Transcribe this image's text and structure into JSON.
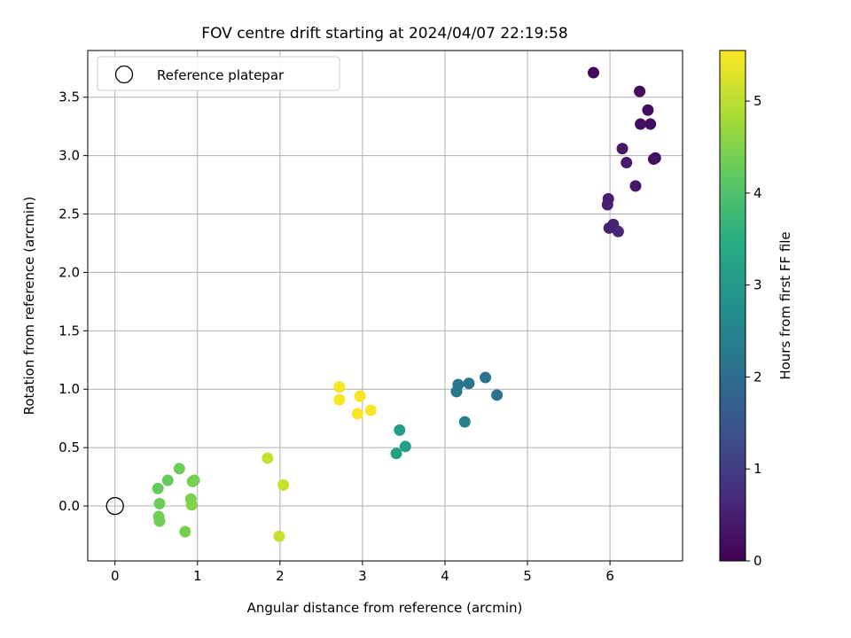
{
  "chart_data": {
    "type": "scatter",
    "title": "FOV centre drift starting at 2024/04/07 22:19:58",
    "xlabel": "Angular distance from reference (arcmin)",
    "ylabel": "Rotation from reference (arcmin)",
    "xlim": [
      -0.33,
      6.88
    ],
    "ylim": [
      -0.47,
      3.9
    ],
    "xticks": [
      "0",
      "1",
      "2",
      "3",
      "4",
      "5",
      "6"
    ],
    "yticks": [
      "0.0",
      "0.5",
      "1.0",
      "1.5",
      "2.0",
      "2.5",
      "3.0",
      "3.5"
    ],
    "grid": true,
    "legend": {
      "position": "top-left",
      "entries": [
        "Reference platepar"
      ]
    },
    "reference": {
      "name": "Reference platepar",
      "x": 0,
      "y": 0,
      "marker": "hollow-circle"
    },
    "colorbar": {
      "label": "Hours from first FF file",
      "min": 0,
      "max": 5.55,
      "ticks": [
        "0",
        "1",
        "2",
        "3",
        "4",
        "5"
      ],
      "colormap": "viridis"
    },
    "points": [
      {
        "x": 5.8,
        "y": 3.71,
        "c": 0.1
      },
      {
        "x": 6.36,
        "y": 3.55,
        "c": 0.15
      },
      {
        "x": 6.46,
        "y": 3.39,
        "c": 0.15
      },
      {
        "x": 6.37,
        "y": 3.27,
        "c": 0.2
      },
      {
        "x": 6.49,
        "y": 3.27,
        "c": 0.2
      },
      {
        "x": 6.15,
        "y": 3.06,
        "c": 0.35
      },
      {
        "x": 6.55,
        "y": 2.98,
        "c": 0.25
      },
      {
        "x": 6.53,
        "y": 2.97,
        "c": 0.25
      },
      {
        "x": 6.2,
        "y": 2.94,
        "c": 0.4
      },
      {
        "x": 6.31,
        "y": 2.74,
        "c": 0.35
      },
      {
        "x": 5.98,
        "y": 2.63,
        "c": 0.5
      },
      {
        "x": 5.97,
        "y": 2.58,
        "c": 0.5
      },
      {
        "x": 6.04,
        "y": 2.41,
        "c": 0.55
      },
      {
        "x": 5.99,
        "y": 2.38,
        "c": 0.55
      },
      {
        "x": 6.1,
        "y": 2.35,
        "c": 0.6
      },
      {
        "x": 4.49,
        "y": 1.1,
        "c": 2.1
      },
      {
        "x": 4.29,
        "y": 1.05,
        "c": 2.2
      },
      {
        "x": 4.16,
        "y": 1.04,
        "c": 2.15
      },
      {
        "x": 4.14,
        "y": 0.98,
        "c": 2.2
      },
      {
        "x": 4.63,
        "y": 0.95,
        "c": 2.15
      },
      {
        "x": 4.24,
        "y": 0.72,
        "c": 2.4
      },
      {
        "x": 3.45,
        "y": 0.65,
        "c": 3.1
      },
      {
        "x": 3.52,
        "y": 0.51,
        "c": 3.1
      },
      {
        "x": 3.41,
        "y": 0.45,
        "c": 3.15
      },
      {
        "x": 2.72,
        "y": 1.02,
        "c": 5.5
      },
      {
        "x": 2.97,
        "y": 0.94,
        "c": 5.5
      },
      {
        "x": 2.72,
        "y": 0.91,
        "c": 5.5
      },
      {
        "x": 3.1,
        "y": 0.82,
        "c": 5.5
      },
      {
        "x": 2.94,
        "y": 0.79,
        "c": 5.5
      },
      {
        "x": 1.85,
        "y": 0.41,
        "c": 5.1
      },
      {
        "x": 2.04,
        "y": 0.18,
        "c": 5.1
      },
      {
        "x": 1.99,
        "y": -0.26,
        "c": 5.1
      },
      {
        "x": 0.78,
        "y": 0.32,
        "c": 4.3
      },
      {
        "x": 0.64,
        "y": 0.22,
        "c": 4.25
      },
      {
        "x": 0.96,
        "y": 0.22,
        "c": 4.4
      },
      {
        "x": 0.94,
        "y": 0.21,
        "c": 4.4
      },
      {
        "x": 0.52,
        "y": 0.15,
        "c": 4.25
      },
      {
        "x": 0.92,
        "y": 0.06,
        "c": 4.45
      },
      {
        "x": 0.54,
        "y": 0.02,
        "c": 4.3
      },
      {
        "x": 0.93,
        "y": 0.01,
        "c": 4.5
      },
      {
        "x": 0.53,
        "y": -0.09,
        "c": 4.35
      },
      {
        "x": 0.54,
        "y": -0.13,
        "c": 4.35
      },
      {
        "x": 0.85,
        "y": -0.22,
        "c": 4.4
      }
    ]
  }
}
